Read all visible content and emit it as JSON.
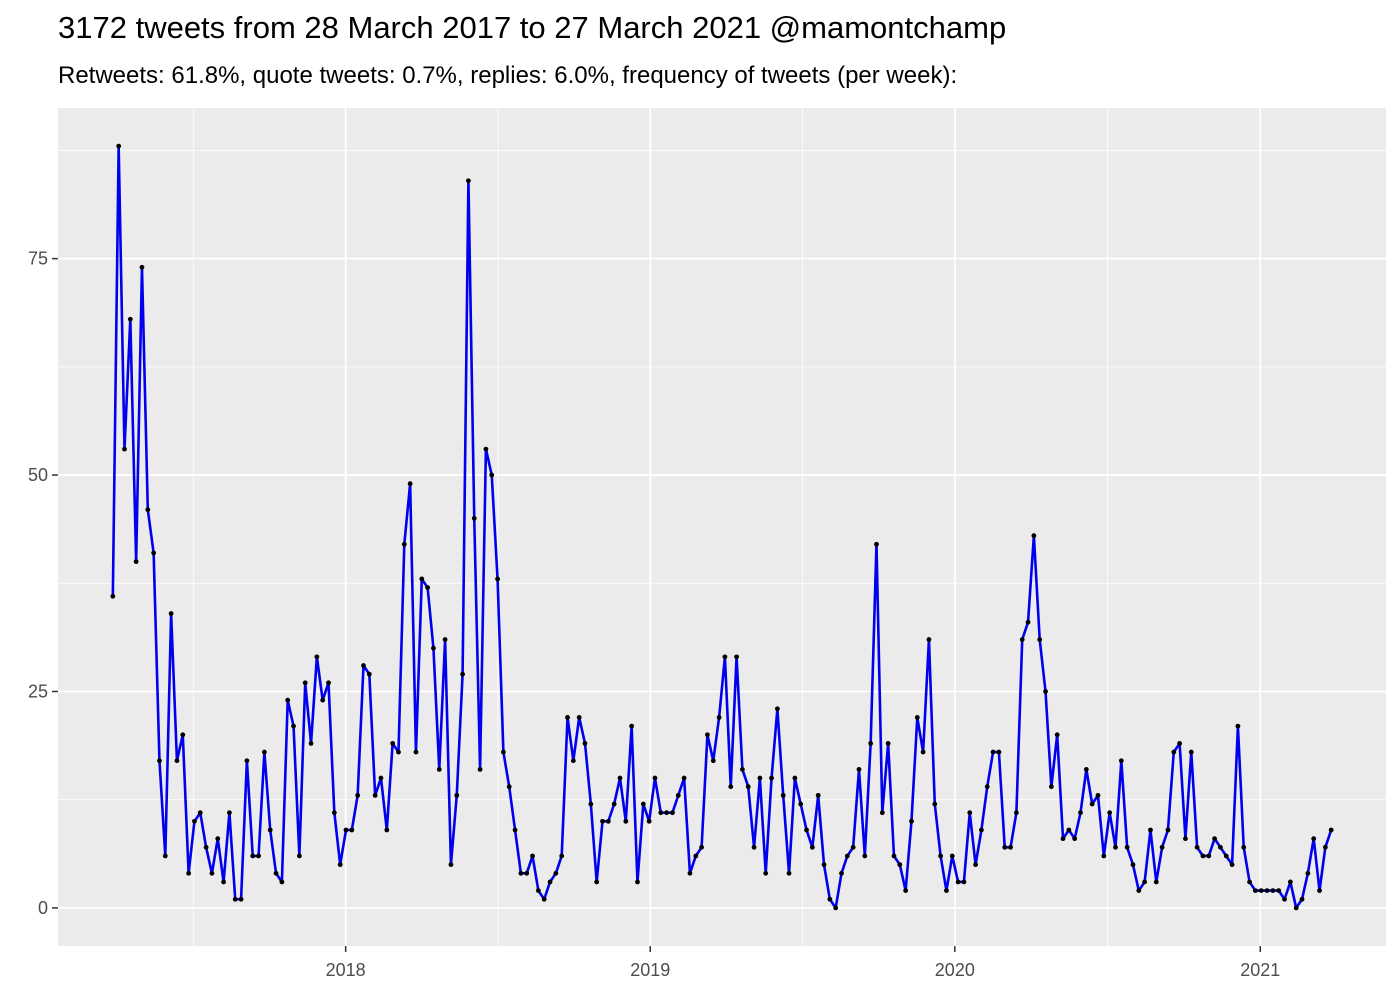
{
  "title": "3172 tweets from 28 March 2017 to 27 March 2021 @mamontchamp",
  "subtitle": "Retweets: 61.8%, quote tweets: 0.7%, replies: 6.0%, frequency of tweets (per week):",
  "colors": {
    "line": "#0000ee",
    "point": "#000000",
    "panel": "#ebebeb",
    "grid": "#ffffff"
  },
  "chart_data": {
    "type": "line",
    "x_start": "2017-03-28",
    "x_end": "2021-03-27",
    "x_ticks": [
      {
        "date": "2018-01-01",
        "label": "2018"
      },
      {
        "date": "2019-01-01",
        "label": "2019"
      },
      {
        "date": "2020-01-01",
        "label": "2020"
      },
      {
        "date": "2021-01-01",
        "label": "2021"
      }
    ],
    "y_ticks": [
      0,
      25,
      50,
      75
    ],
    "ylim": [
      -4.4,
      92.4
    ],
    "grid": true,
    "legend": "none",
    "series": [
      {
        "values": [
          36,
          88,
          53,
          68,
          40,
          74,
          46,
          41,
          17,
          6,
          34,
          17,
          20,
          4,
          10,
          11,
          7,
          4,
          8,
          3,
          11,
          1,
          1,
          17,
          6,
          6,
          18,
          9,
          4,
          3,
          24,
          21,
          6,
          26,
          19,
          29,
          24,
          26,
          11,
          5,
          9,
          9,
          13,
          28,
          27,
          13,
          15,
          9,
          19,
          18,
          42,
          49,
          18,
          38,
          37,
          30,
          16,
          31,
          5,
          13,
          27,
          84,
          45,
          16,
          53,
          50,
          38,
          18,
          14,
          9,
          4,
          4,
          6,
          2,
          1,
          3,
          4,
          6,
          22,
          17,
          22,
          19,
          12,
          3,
          10,
          10,
          12,
          15,
          10,
          21,
          3,
          12,
          10,
          15,
          11,
          11,
          11,
          13,
          15,
          4,
          6,
          7,
          20,
          17,
          22,
          29,
          14,
          29,
          16,
          14,
          7,
          15,
          4,
          15,
          23,
          13,
          4,
          15,
          12,
          9,
          7,
          13,
          5,
          1,
          0,
          4,
          6,
          7,
          16,
          6,
          19,
          42,
          11,
          19,
          6,
          5,
          2,
          10,
          22,
          18,
          31,
          12,
          6,
          2,
          6,
          3,
          3,
          11,
          5,
          9,
          14,
          18,
          18,
          7,
          7,
          11,
          31,
          33,
          43,
          31,
          25,
          14,
          20,
          8,
          9,
          8,
          11,
          16,
          12,
          13,
          6,
          11,
          7,
          17,
          7,
          5,
          2,
          3,
          9,
          3,
          7,
          9,
          18,
          19,
          8,
          18,
          7,
          6,
          6,
          8,
          7,
          6,
          5,
          21,
          7,
          3,
          2,
          2,
          2,
          2,
          2,
          1,
          3,
          0,
          1,
          4,
          8,
          2,
          7,
          9
        ]
      }
    ]
  }
}
